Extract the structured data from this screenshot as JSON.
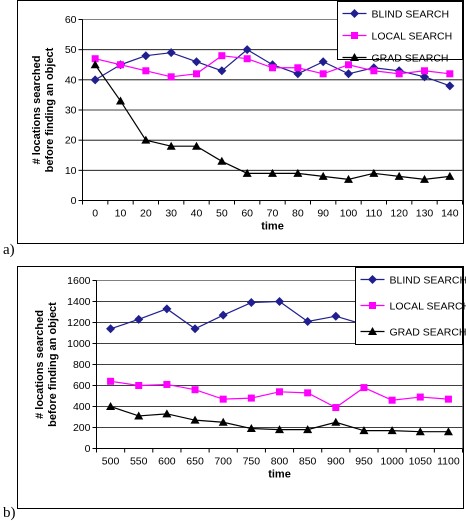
{
  "chart_data": [
    {
      "type": "line",
      "panel_label": "a)",
      "xlabel": "time",
      "ylabel": [
        "# locations searched",
        "before finding an object"
      ],
      "x": [
        "0",
        "10",
        "20",
        "30",
        "40",
        "50",
        "60",
        "70",
        "80",
        "90",
        "100",
        "110",
        "120",
        "130",
        "140"
      ],
      "ylim": [
        0,
        60
      ],
      "yticks": [
        "0",
        "10",
        "20",
        "30",
        "40",
        "50",
        "60"
      ],
      "grid": "horizontal",
      "legend": "top-right",
      "series": [
        {
          "name": "BLIND SEARCH",
          "color": "#1f1f8f",
          "marker": "diamond",
          "values": [
            40,
            45,
            48,
            49,
            46,
            43,
            50,
            45,
            42,
            46,
            42,
            44,
            43,
            41,
            38
          ]
        },
        {
          "name": "LOCAL SEARCH",
          "color": "#ff00ff",
          "marker": "square",
          "values": [
            47,
            45,
            43,
            41,
            42,
            48,
            47,
            44,
            44,
            42,
            45,
            43,
            42,
            43,
            42
          ]
        },
        {
          "name": "GRAD SEARCH",
          "color": "#000000",
          "marker": "triangle",
          "values": [
            45,
            33,
            20,
            18,
            18,
            13,
            9,
            9,
            9,
            8,
            7,
            9,
            8,
            7,
            8
          ]
        }
      ]
    },
    {
      "type": "line",
      "panel_label": "b)",
      "xlabel": "time",
      "ylabel": [
        "# locations searched",
        "before finding an object"
      ],
      "x": [
        "500",
        "550",
        "600",
        "650",
        "700",
        "750",
        "800",
        "850",
        "900",
        "950",
        "1000",
        "1050",
        "1100"
      ],
      "ylim": [
        0,
        1600
      ],
      "yticks": [
        "0",
        "200",
        "400",
        "600",
        "800",
        "1000",
        "1200",
        "1400",
        "1600"
      ],
      "grid": "horizontal",
      "legend": "top-right",
      "series": [
        {
          "name": "BLIND SEARCH",
          "color": "#1f1f8f",
          "marker": "diamond",
          "values": [
            1140,
            1230,
            1330,
            1140,
            1270,
            1390,
            1400,
            1210,
            1260,
            1180,
            1220,
            1200,
            1190
          ]
        },
        {
          "name": "LOCAL SEARCH",
          "color": "#ff00ff",
          "marker": "square",
          "values": [
            640,
            600,
            610,
            560,
            470,
            480,
            540,
            530,
            390,
            580,
            460,
            490,
            470
          ]
        },
        {
          "name": "GRAD SEARCH",
          "color": "#000000",
          "marker": "triangle",
          "values": [
            400,
            310,
            330,
            270,
            250,
            190,
            180,
            180,
            250,
            170,
            170,
            160,
            160
          ]
        }
      ]
    }
  ]
}
